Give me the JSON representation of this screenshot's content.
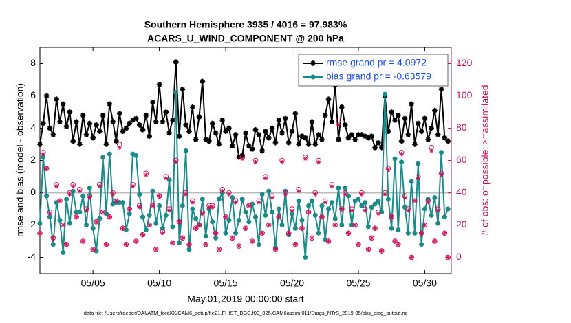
{
  "chart_data": {
    "type": "line",
    "title": "Southern Hemisphere 3935 / 4016 = 97.983%",
    "subtitle": "ACARS_U_WIND_COMPONENT @ 200 hPa",
    "xlabel": "May.01,2019 00:00:00 start",
    "ylabel": "rmse and bias (model - observation)",
    "y2label": "# of obs: o=possible; ×=assimilated",
    "footnote": "data file: /Users/raeder/DAI/ATM_forcXX/CAM6_setup/f.e21.FHIST_BGC.f09_025.CAM6assim.011/Diags_NTrS_2019-05/obs_diag_output.nc",
    "xlim": [
      1,
      32
    ],
    "xticks": [
      {
        "value": 5,
        "label": "05/05"
      },
      {
        "value": 10,
        "label": "05/10"
      },
      {
        "value": 15,
        "label": "05/15"
      },
      {
        "value": 20,
        "label": "05/20"
      },
      {
        "value": 25,
        "label": "05/25"
      },
      {
        "value": 30,
        "label": "05/30"
      }
    ],
    "ylim": [
      -5,
      9
    ],
    "yticks": [
      -4,
      -2,
      0,
      2,
      4,
      6,
      8
    ],
    "y2lim": [
      -10,
      130
    ],
    "y2ticks": [
      0,
      20,
      40,
      60,
      80,
      100,
      120
    ],
    "legend": "upper right",
    "x": [
      1,
      1.25,
      1.5,
      1.75,
      2,
      2.25,
      2.5,
      2.75,
      3,
      3.25,
      3.5,
      3.75,
      4,
      4.25,
      4.5,
      4.75,
      5,
      5.25,
      5.5,
      5.75,
      6,
      6.25,
      6.5,
      6.75,
      7,
      7.25,
      7.5,
      7.75,
      8,
      8.25,
      8.5,
      8.75,
      9,
      9.25,
      9.5,
      9.75,
      10,
      10.25,
      10.5,
      10.75,
      11,
      11.25,
      11.5,
      11.75,
      12,
      12.25,
      12.5,
      12.75,
      13,
      13.25,
      13.5,
      13.75,
      14,
      14.25,
      14.5,
      14.75,
      15,
      15.25,
      15.5,
      15.75,
      16,
      16.25,
      16.5,
      16.75,
      17,
      17.25,
      17.5,
      17.75,
      18,
      18.25,
      18.5,
      18.75,
      19,
      19.25,
      19.5,
      19.75,
      20,
      20.25,
      20.5,
      20.75,
      21,
      21.25,
      21.5,
      21.75,
      22,
      22.25,
      22.5,
      22.75,
      23,
      23.25,
      23.5,
      23.75,
      24,
      24.25,
      24.5,
      24.75,
      25,
      25.25,
      25.5,
      25.75,
      26,
      26.25,
      26.5,
      26.75,
      27,
      27.25,
      27.5,
      27.75,
      28,
      28.25,
      28.5,
      28.75,
      29,
      29.25,
      29.5,
      29.75,
      30,
      30.25,
      30.5,
      30.75,
      31,
      31.25,
      31.5,
      31.75
    ],
    "series": [
      {
        "name": "rmse grand pr = 4.0972",
        "color": "#000000",
        "marker": "star",
        "values": [
          3.0,
          4.3,
          6.0,
          4.0,
          3.6,
          5.8,
          4.4,
          5.5,
          4.1,
          5.0,
          3.2,
          4.4,
          3.0,
          4.8,
          3.6,
          4.3,
          3.4,
          4.2,
          3.8,
          4.8,
          3.0,
          5.5,
          4.4,
          3.2,
          4.9,
          3.8,
          4.0,
          4.3,
          4.5,
          4.6,
          4.2,
          3.9,
          4.8,
          3.5,
          5.6,
          4.4,
          6.7,
          4.4,
          5.0,
          3.7,
          4.5,
          8.1,
          3.5,
          6.4,
          4.2,
          3.8,
          5.3,
          3.3,
          4.7,
          6.9,
          3.3,
          3.2,
          4.3,
          3.7,
          3.0,
          4.5,
          3.8,
          4.0,
          2.9,
          3.6,
          2.2,
          2.3,
          3.7,
          2.9,
          2.7,
          3.9,
          3.6,
          2.6,
          3.8,
          3.4,
          4.0,
          3.1,
          4.5,
          3.7,
          4.6,
          3.1,
          3.8,
          4.9,
          3.0,
          3.5,
          3.4,
          3.0,
          4.4,
          3.0,
          3.6,
          3.3,
          4.8,
          5.8,
          4.4,
          6.7,
          3.3,
          5.3,
          4.2,
          3.4,
          3.6,
          3.3,
          3.6,
          3.6,
          3.5,
          3.4,
          3.5,
          2.8,
          3.1,
          2.8,
          6.0,
          3.8,
          5.0,
          4.5,
          4.8,
          3.2,
          4.6,
          3.6,
          5.5,
          3.0,
          4.3,
          3.8,
          4.6,
          3.3,
          4.0,
          5.1,
          3.6,
          6.4,
          3.4,
          3.2
        ]
      },
      {
        "name": "bias grand pr = -0.63579",
        "color": "#1a8a8a",
        "marker": "dot",
        "values": [
          -1.9,
          2.2,
          -0.2,
          -1.5,
          -3.2,
          -0.6,
          -1.7,
          -3.7,
          -0.4,
          -1.9,
          0.1,
          -1.2,
          -1.2,
          -0.2,
          -2.0,
          0.3,
          -2.2,
          -3.6,
          -1.6,
          2.2,
          -1.3,
          2.4,
          -0.7,
          -0.6,
          -0.6,
          -0.6,
          -2.3,
          -1.3,
          2.4,
          2.3,
          -0.1,
          -1.5,
          -2.3,
          -1.4,
          0.1,
          -1.9,
          -0.8,
          -2.2,
          -1.4,
          0.8,
          -2.1,
          6.2,
          -3.1,
          -0.8,
          2.6,
          -3.5,
          -1.0,
          -1.6,
          -2.0,
          -0.4,
          -2.7,
          -1.0,
          -1.8,
          -2.8,
          -0.4,
          0.0,
          -2.5,
          -1.7,
          -0.3,
          -2.5,
          -1.7,
          -0.4,
          -1.2,
          -1.8,
          -0.7,
          -1.5,
          -3.2,
          -0.1,
          -1.4,
          0.1,
          -1.2,
          -3.4,
          -1.0,
          -2.0,
          0.1,
          -2.6,
          -1.3,
          -2.2,
          -0.5,
          -1.7,
          -4.0,
          -0.8,
          -0.5,
          -1.4,
          -2.5,
          -0.8,
          -2.9,
          -1.0,
          -0.6,
          -1.6,
          0.3,
          -2.0,
          0.3,
          -0.2,
          -2.0,
          -0.5,
          -0.4,
          -0.8,
          -0.6,
          -2.1,
          -0.9,
          -0.7,
          -0.5,
          -1.2,
          6.1,
          -0.4,
          -2.2,
          2.1,
          -2.3,
          1.9,
          -0.9,
          -2.5,
          0.7,
          -2.5,
          1.8,
          -3.2,
          -1.0,
          -0.4,
          -1.4,
          -0.3,
          -1.9,
          2.5,
          -1.5,
          -1.0
        ]
      },
      {
        "color": "#d0105a",
        "marker": "circle",
        "axis": "y2",
        "values": [
          15,
          65,
          55,
          28,
          12,
          45,
          35,
          20,
          8,
          40,
          45,
          25,
          42,
          10,
          30,
          38,
          5,
          22,
          45,
          28,
          8,
          25,
          40,
          35,
          70,
          18,
          8,
          30,
          45,
          10,
          32,
          14,
          52,
          20,
          32,
          5,
          38,
          16,
          50,
          30,
          9,
          60,
          22,
          12,
          40,
          8,
          35,
          18,
          20,
          28,
          8,
          32,
          32,
          15,
          5,
          42,
          25,
          40,
          12,
          35,
          7,
          62,
          18,
          32,
          10,
          60,
          35,
          15,
          50,
          20,
          38,
          5,
          25,
          60,
          40,
          15,
          30,
          8,
          42,
          18,
          62,
          28,
          12,
          40,
          60,
          25,
          35,
          10,
          45,
          20,
          85,
          30,
          40,
          15,
          30,
          20,
          8,
          40,
          30,
          5,
          12,
          18,
          28,
          4,
          40,
          55,
          25,
          10,
          8,
          65,
          38,
          30,
          0,
          35,
          50,
          15,
          20,
          35,
          68,
          10,
          30,
          52,
          15,
          0
        ]
      },
      {
        "color": "#d0105a",
        "marker": "asterisk",
        "axis": "y2",
        "values": [
          15,
          64,
          55,
          27,
          12,
          44,
          35,
          20,
          8,
          39,
          44,
          25,
          41,
          10,
          29,
          37,
          5,
          22,
          44,
          28,
          8,
          25,
          39,
          35,
          68,
          18,
          8,
          30,
          44,
          10,
          31,
          14,
          51,
          20,
          32,
          5,
          38,
          15,
          49,
          29,
          9,
          59,
          22,
          12,
          39,
          8,
          34,
          18,
          20,
          27,
          8,
          31,
          31,
          15,
          5,
          41,
          25,
          39,
          12,
          34,
          7,
          61,
          18,
          32,
          10,
          59,
          34,
          15,
          49,
          20,
          37,
          5,
          25,
          59,
          39,
          15,
          29,
          8,
          41,
          18,
          61,
          28,
          12,
          39,
          59,
          25,
          34,
          10,
          44,
          20,
          82,
          30,
          39,
          15,
          29,
          20,
          8,
          39,
          29,
          5,
          12,
          18,
          27,
          4,
          39,
          54,
          25,
          10,
          8,
          64,
          37,
          29,
          0,
          35,
          49,
          15,
          20,
          34,
          66,
          10,
          29,
          51,
          15,
          0
        ]
      }
    ]
  }
}
